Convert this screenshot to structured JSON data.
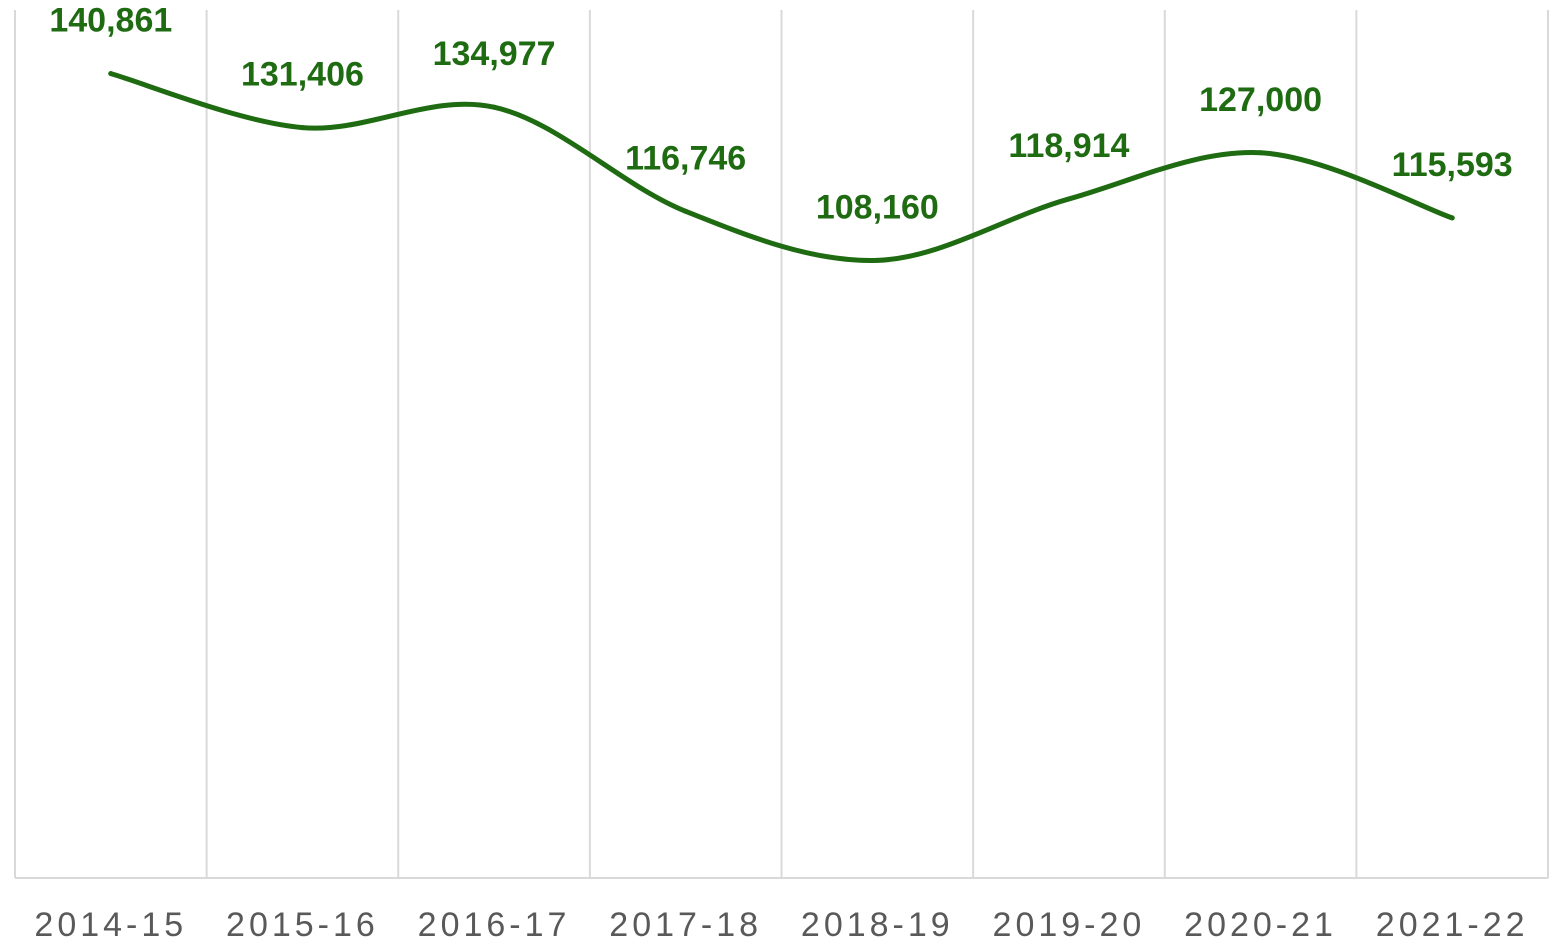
{
  "chart_data": {
    "type": "line",
    "title": "",
    "xlabel": "",
    "ylabel": "",
    "categories": [
      "2014-15",
      "2015-16",
      "2016-17",
      "2017-18",
      "2018-19",
      "2019-20",
      "2020-21",
      "2021-22"
    ],
    "series": [
      {
        "values": [
          140861,
          131406,
          134977,
          116746,
          108160,
          118914,
          127000,
          115593
        ],
        "labels": [
          "140,861",
          "131,406",
          "134,977",
          "116,746",
          "108,160",
          "118,914",
          "127,000",
          "115,593"
        ],
        "color": "#1e6b12",
        "smooth": true
      }
    ],
    "ylim": [
      0,
      152000
    ],
    "grid": {
      "vertical": true,
      "horizontal": false
    },
    "legend": "none",
    "data_labels": true
  }
}
